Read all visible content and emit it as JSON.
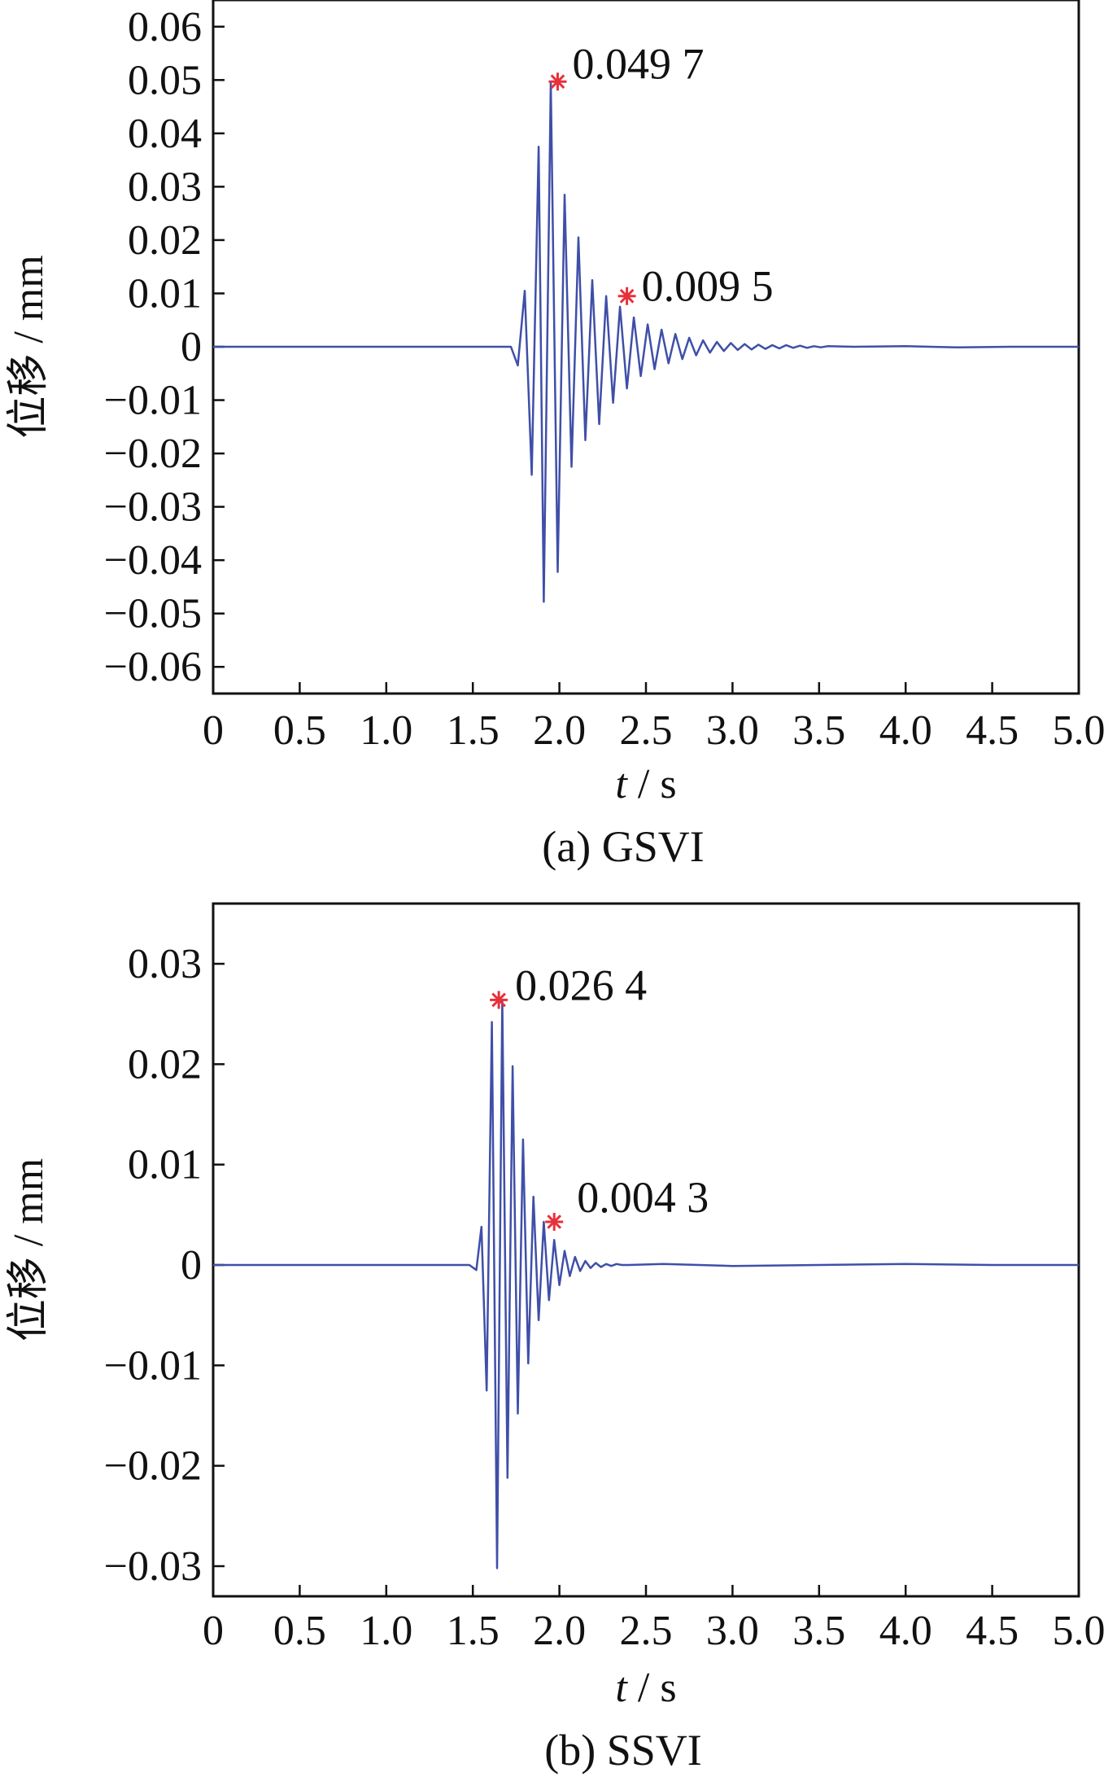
{
  "chart_data": [
    {
      "type": "line",
      "panel_caption": "(a)  GSVI",
      "xlabel_var": "t",
      "xlabel_unit": " / s",
      "ylabel": "位移 / mm",
      "xlim": [
        0,
        5.0
      ],
      "ylim": [
        -0.065,
        0.065
      ],
      "x_ticks": [
        0,
        0.5,
        1.0,
        1.5,
        2.0,
        2.5,
        3.0,
        3.5,
        4.0,
        4.5,
        5.0
      ],
      "x_tick_labels": [
        "0",
        "0.5",
        "1.0",
        "1.5",
        "2.0",
        "2.5",
        "3.0",
        "3.5",
        "4.0",
        "4.5",
        "5.0"
      ],
      "y_ticks": [
        0.06,
        0.05,
        0.04,
        0.03,
        0.02,
        0.01,
        0,
        -0.01,
        -0.02,
        -0.03,
        -0.04,
        -0.05,
        -0.06
      ],
      "y_tick_labels": [
        "0.06",
        "0.05",
        "0.04",
        "0.03",
        "0.02",
        "0.01",
        "0",
        "−0.01",
        "−0.02",
        "−0.03",
        "−0.04",
        "−0.05",
        "−0.06"
      ],
      "line_color": "#3f4fa8",
      "marker_color": "#e8303a",
      "series": [
        {
          "x": [
            0,
            1.72,
            1.76,
            1.8,
            1.84,
            1.88,
            1.91,
            1.95,
            1.99,
            2.03,
            2.07,
            2.11,
            2.15,
            2.19,
            2.23,
            2.27,
            2.31,
            2.35,
            2.39,
            2.43,
            2.47,
            2.51,
            2.55,
            2.59,
            2.63,
            2.67,
            2.71,
            2.75,
            2.79,
            2.83,
            2.87,
            2.91,
            2.95,
            2.99,
            3.03,
            3.07,
            3.11,
            3.15,
            3.19,
            3.23,
            3.27,
            3.31,
            3.35,
            3.39,
            3.43,
            3.47,
            3.51,
            3.55,
            3.7,
            4.0,
            4.3,
            4.6,
            5.0
          ],
          "y": [
            0,
            0,
            -0.0035,
            0.0105,
            -0.024,
            0.0375,
            -0.0478,
            0.0497,
            -0.0422,
            0.0285,
            -0.0225,
            0.0205,
            -0.0175,
            0.0125,
            -0.0145,
            0.0095,
            -0.0105,
            0.0075,
            -0.0078,
            0.0055,
            -0.0055,
            0.0042,
            -0.0042,
            0.0032,
            -0.0031,
            0.0024,
            -0.0023,
            0.0017,
            -0.0016,
            0.0012,
            -0.0011,
            0.0009,
            -0.0008,
            0.0007,
            -0.0006,
            0.0005,
            -0.0005,
            0.0004,
            -0.0004,
            0.0003,
            -0.0003,
            0.0003,
            -0.0002,
            0.0002,
            -0.0002,
            0.0001,
            -0.0001,
            0.0001,
            0,
            0.0001,
            -0.0001,
            0,
            0
          ]
        }
      ],
      "annotations": [
        {
          "x": 1.99,
          "y": 0.0497,
          "label": "0.049 7"
        },
        {
          "x": 2.39,
          "y": 0.0095,
          "label": "0.009 5"
        }
      ]
    },
    {
      "type": "line",
      "panel_caption": "(b)  SSVI",
      "xlabel_var": "t",
      "xlabel_unit": " / s",
      "ylabel": "位移 / mm",
      "xlim": [
        0,
        5.0
      ],
      "ylim": [
        -0.033,
        0.036
      ],
      "x_ticks": [
        0,
        0.5,
        1.0,
        1.5,
        2.0,
        2.5,
        3.0,
        3.5,
        4.0,
        4.5,
        5.0
      ],
      "x_tick_labels": [
        "0",
        "0.5",
        "1.0",
        "1.5",
        "2.0",
        "2.5",
        "3.0",
        "3.5",
        "4.0",
        "4.5",
        "5.0"
      ],
      "y_ticks": [
        0.03,
        0.02,
        0.01,
        0,
        -0.01,
        -0.02,
        -0.03
      ],
      "y_tick_labels": [
        "0.03",
        "0.02",
        "0.01",
        "0",
        "−0.01",
        "−0.02",
        "−0.03"
      ],
      "line_color": "#3f4fa8",
      "marker_color": "#e8303a",
      "series": [
        {
          "x": [
            0,
            1.48,
            1.52,
            1.55,
            1.58,
            1.61,
            1.64,
            1.67,
            1.7,
            1.73,
            1.76,
            1.79,
            1.82,
            1.85,
            1.88,
            1.91,
            1.94,
            1.97,
            2.0,
            2.03,
            2.06,
            2.09,
            2.12,
            2.15,
            2.18,
            2.21,
            2.24,
            2.27,
            2.3,
            2.33,
            2.36,
            2.4,
            2.6,
            3.0,
            3.5,
            4.0,
            4.5,
            5.0
          ],
          "y": [
            0,
            0,
            -0.0005,
            0.0038,
            -0.0125,
            0.0242,
            -0.0302,
            0.0264,
            -0.0212,
            0.0198,
            -0.0148,
            0.0125,
            -0.0098,
            0.0068,
            -0.0055,
            0.0043,
            -0.0035,
            0.0025,
            -0.002,
            0.0014,
            -0.0011,
            0.0008,
            -0.0006,
            0.0004,
            -0.0003,
            0.0002,
            -0.0002,
            0.0001,
            -0.0001,
            0.0001,
            0,
            0,
            0.0001,
            -0.0001,
            0,
            0.0001,
            0,
            0
          ]
        }
      ],
      "annotations": [
        {
          "x": 1.65,
          "y": 0.0264,
          "label": "0.026 4"
        },
        {
          "x": 1.97,
          "y": 0.0043,
          "label": "0.004 3"
        }
      ]
    }
  ]
}
